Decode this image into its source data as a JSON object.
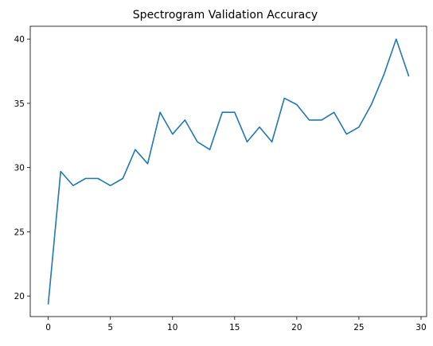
{
  "chart_data": {
    "type": "line",
    "title": "Spectrogram Validation Accuracy",
    "xlabel": "",
    "ylabel": "",
    "xlim": [
      -1.45,
      30.45
    ],
    "ylim": [
      18.4,
      41.0
    ],
    "grid": false,
    "x_ticks": [
      0,
      5,
      10,
      15,
      20,
      25,
      30
    ],
    "y_ticks": [
      20,
      25,
      30,
      35,
      40
    ],
    "series": [
      {
        "color": "#1f77b4",
        "x": [
          0,
          1,
          2,
          3,
          4,
          5,
          6,
          7,
          8,
          9,
          10,
          11,
          12,
          13,
          14,
          15,
          16,
          17,
          18,
          19,
          20,
          21,
          22,
          23,
          24,
          25,
          26,
          27,
          28,
          29
        ],
        "values": [
          19.4,
          29.7,
          28.6,
          29.15,
          29.15,
          28.6,
          29.15,
          31.4,
          30.3,
          34.3,
          32.6,
          33.7,
          32.0,
          31.4,
          34.3,
          34.3,
          32.0,
          33.15,
          32.0,
          35.4,
          34.9,
          33.7,
          33.7,
          34.3,
          32.6,
          33.15,
          34.9,
          37.2,
          40.0,
          37.15
        ]
      }
    ]
  }
}
